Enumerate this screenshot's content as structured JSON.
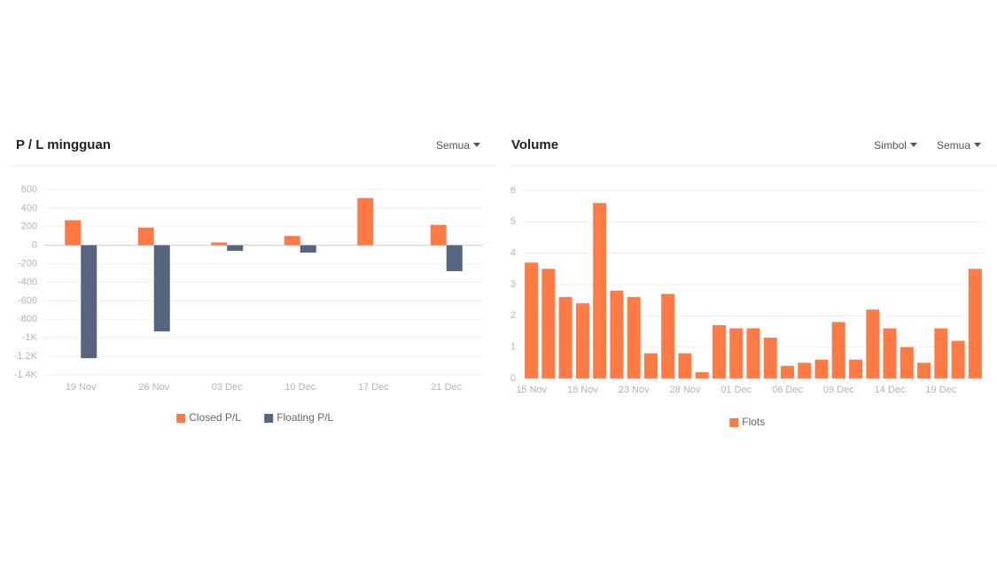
{
  "chart_data": [
    {
      "type": "bar",
      "title": "P / L mingguan",
      "dropdowns": [
        "Semua"
      ],
      "categories": [
        "19 Nov",
        "26 Nov",
        "03 Dec",
        "10 Dec",
        "17 Dec",
        "21 Dec"
      ],
      "series": [
        {
          "name": "Closed P/L",
          "color": "#ff7a45",
          "values": [
            270,
            190,
            30,
            100,
            510,
            220
          ]
        },
        {
          "name": "Floating P/L",
          "color": "#56657f",
          "values": [
            -1220,
            -930,
            -60,
            -80,
            null,
            -280
          ]
        }
      ],
      "ylim": [
        -1400,
        600
      ],
      "yticks": [
        600,
        400,
        200,
        0,
        -200,
        -400,
        -600,
        -800,
        {
          "value": -1000,
          "label": "-1K"
        },
        {
          "value": -1200,
          "label": "-1.2K"
        },
        {
          "value": -1400,
          "label": "-1.4K"
        }
      ],
      "grid": true
    },
    {
      "type": "bar",
      "title": "Volume",
      "dropdowns": [
        "Simbol",
        "Semua"
      ],
      "categories": [
        "15 Nov",
        null,
        null,
        "18 Nov",
        null,
        null,
        "23 Nov",
        null,
        null,
        "28 Nov",
        null,
        null,
        "01 Dec",
        null,
        null,
        "06 Dec",
        null,
        null,
        "09 Dec",
        null,
        null,
        "14 Dec",
        null,
        null,
        "19 Dec",
        null,
        null
      ],
      "series": [
        {
          "name": "Flots",
          "color": "#ff7a45",
          "values": [
            3.7,
            3.5,
            2.6,
            2.4,
            5.6,
            2.8,
            2.6,
            0.8,
            2.7,
            0.8,
            0.2,
            1.7,
            1.6,
            1.6,
            1.3,
            0.4,
            0.5,
            0.6,
            1.8,
            0.6,
            2.2,
            1.6,
            1.0,
            0.5,
            1.6,
            1.2,
            3.5
          ]
        }
      ],
      "ylim": [
        0,
        6
      ],
      "yticks": [
        0,
        1,
        2,
        3,
        4,
        5,
        6
      ],
      "grid": true
    }
  ]
}
